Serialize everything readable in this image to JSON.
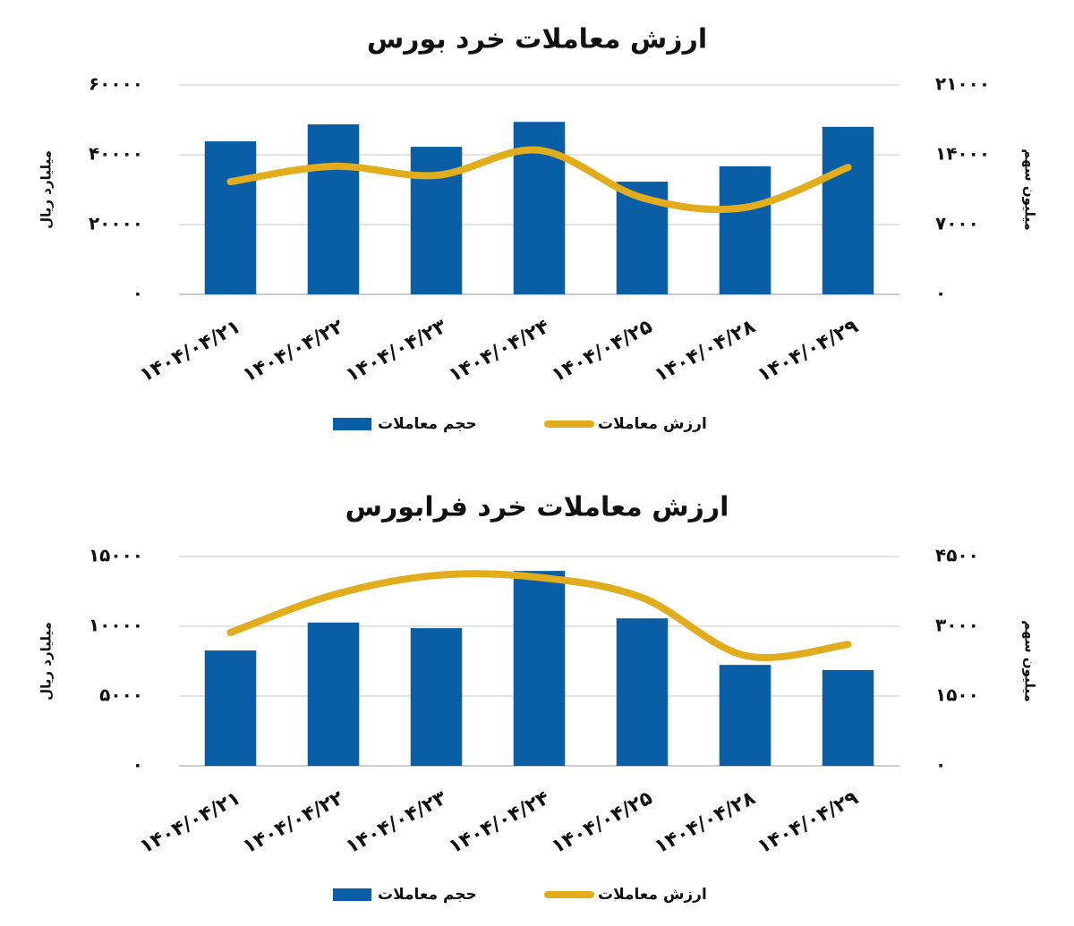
{
  "chart_data": [
    {
      "type": "bar-line",
      "title": "ارزش معاملات خرد بورس",
      "ylabel": "میلیارد ریال",
      "y2label": "میلیون سهم",
      "categories": [
        "۱۴۰۴/۰۴/۲۱",
        "۱۴۰۴/۰۴/۲۲",
        "۱۴۰۴/۰۴/۲۳",
        "۱۴۰۴/۰۴/۲۴",
        "۱۴۰۴/۰۴/۲۵",
        "۱۴۰۴/۰۴/۲۸",
        "۱۴۰۴/۰۴/۲۹"
      ],
      "series": [
        {
          "name": "حجم معاملات",
          "type": "bar",
          "axis": "y2",
          "color": "#0a5ea6",
          "values": [
            15350,
            17050,
            14800,
            17300,
            11300,
            12850,
            16800
          ]
        },
        {
          "name": "ارزش معاملات",
          "type": "line",
          "axis": "y",
          "color": "#e2ad1c",
          "values": [
            32300,
            36700,
            34100,
            41300,
            27700,
            24900,
            36400
          ]
        }
      ],
      "ylim": [
        0,
        60000
      ],
      "yticks": [
        {
          "value": 0,
          "label": "۰"
        },
        {
          "value": 20000,
          "label": "۲۰۰۰۰"
        },
        {
          "value": 40000,
          "label": "۴۰۰۰۰"
        },
        {
          "value": 60000,
          "label": "۶۰۰۰۰"
        }
      ],
      "y2lim": [
        0,
        21000
      ],
      "y2ticks": [
        {
          "value": 0,
          "label": "۰"
        },
        {
          "value": 7000,
          "label": "۷۰۰۰"
        },
        {
          "value": 14000,
          "label": "۱۴۰۰۰"
        },
        {
          "value": 21000,
          "label": "۲۱۰۰۰"
        }
      ],
      "grid": true
    },
    {
      "type": "bar-line",
      "title": "ارزش معاملات خرد فرابورس",
      "ylabel": "میلیارد ریال",
      "y2label": "میلیون سهم",
      "categories": [
        "۱۴۰۴/۰۴/۲۱",
        "۱۴۰۴/۰۴/۲۲",
        "۱۴۰۴/۰۴/۲۳",
        "۱۴۰۴/۰۴/۲۴",
        "۱۴۰۴/۰۴/۲۵",
        "۱۴۰۴/۰۴/۲۸",
        "۱۴۰۴/۰۴/۲۹"
      ],
      "series": [
        {
          "name": "حجم معاملات",
          "type": "bar",
          "axis": "y2",
          "color": "#0a5ea6",
          "values": [
            2480,
            3080,
            2960,
            4190,
            3170,
            2170,
            2060
          ]
        },
        {
          "name": "ارزش معاملات",
          "type": "line",
          "axis": "y",
          "color": "#e2ad1c",
          "values": [
            9550,
            12250,
            13650,
            13500,
            12050,
            7900,
            8700
          ]
        }
      ],
      "ylim": [
        0,
        15000
      ],
      "yticks": [
        {
          "value": 0,
          "label": "۰"
        },
        {
          "value": 5000,
          "label": "۵۰۰۰"
        },
        {
          "value": 10000,
          "label": "۱۰۰۰۰"
        },
        {
          "value": 15000,
          "label": "۱۵۰۰۰"
        }
      ],
      "y2lim": [
        0,
        4500
      ],
      "y2ticks": [
        {
          "value": 0,
          "label": "۰"
        },
        {
          "value": 1500,
          "label": "۱۵۰۰"
        },
        {
          "value": 3000,
          "label": "۳۰۰۰"
        },
        {
          "value": 4500,
          "label": "۴۵۰۰"
        }
      ],
      "grid": true
    }
  ]
}
